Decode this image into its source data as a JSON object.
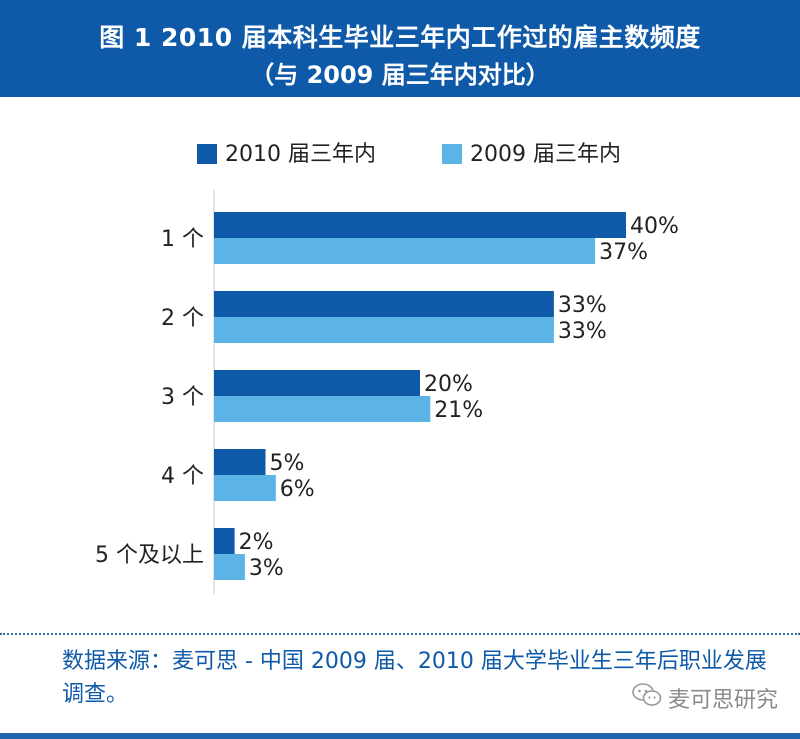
{
  "header": {
    "title": "图 1  2010 届本科生毕业三年内工作过的雇主数频度",
    "subtitle": "（与 2009 届三年内对比）"
  },
  "colors": {
    "header_bg": "#0f5aa8",
    "series_2010": "#0f5aa8",
    "series_2009": "#5bb4e5",
    "source_text": "#0f5aa8"
  },
  "chart_data": {
    "type": "bar",
    "orientation": "horizontal",
    "categories": [
      "1 个",
      "2 个",
      "3 个",
      "4 个",
      "5 个及以上"
    ],
    "series": [
      {
        "name": "2010 届三年内",
        "values": [
          40,
          33,
          20,
          5,
          2
        ],
        "labels": [
          "40%",
          "33%",
          "20%",
          "5%",
          "2%"
        ]
      },
      {
        "name": "2009 届三年内",
        "values": [
          37,
          33,
          21,
          6,
          3
        ],
        "labels": [
          "37%",
          "33%",
          "21%",
          "6%",
          "3%"
        ]
      }
    ],
    "unit": "%",
    "xlim": [
      0,
      40
    ],
    "grid": false,
    "legend_position": "top"
  },
  "footer": {
    "source": "数据来源：麦可思 - 中国 2009 届、2010 届大学毕业生三年后职业发展调查。",
    "watermark": "麦可思研究",
    "watermark_icon": "wechat-icon"
  }
}
